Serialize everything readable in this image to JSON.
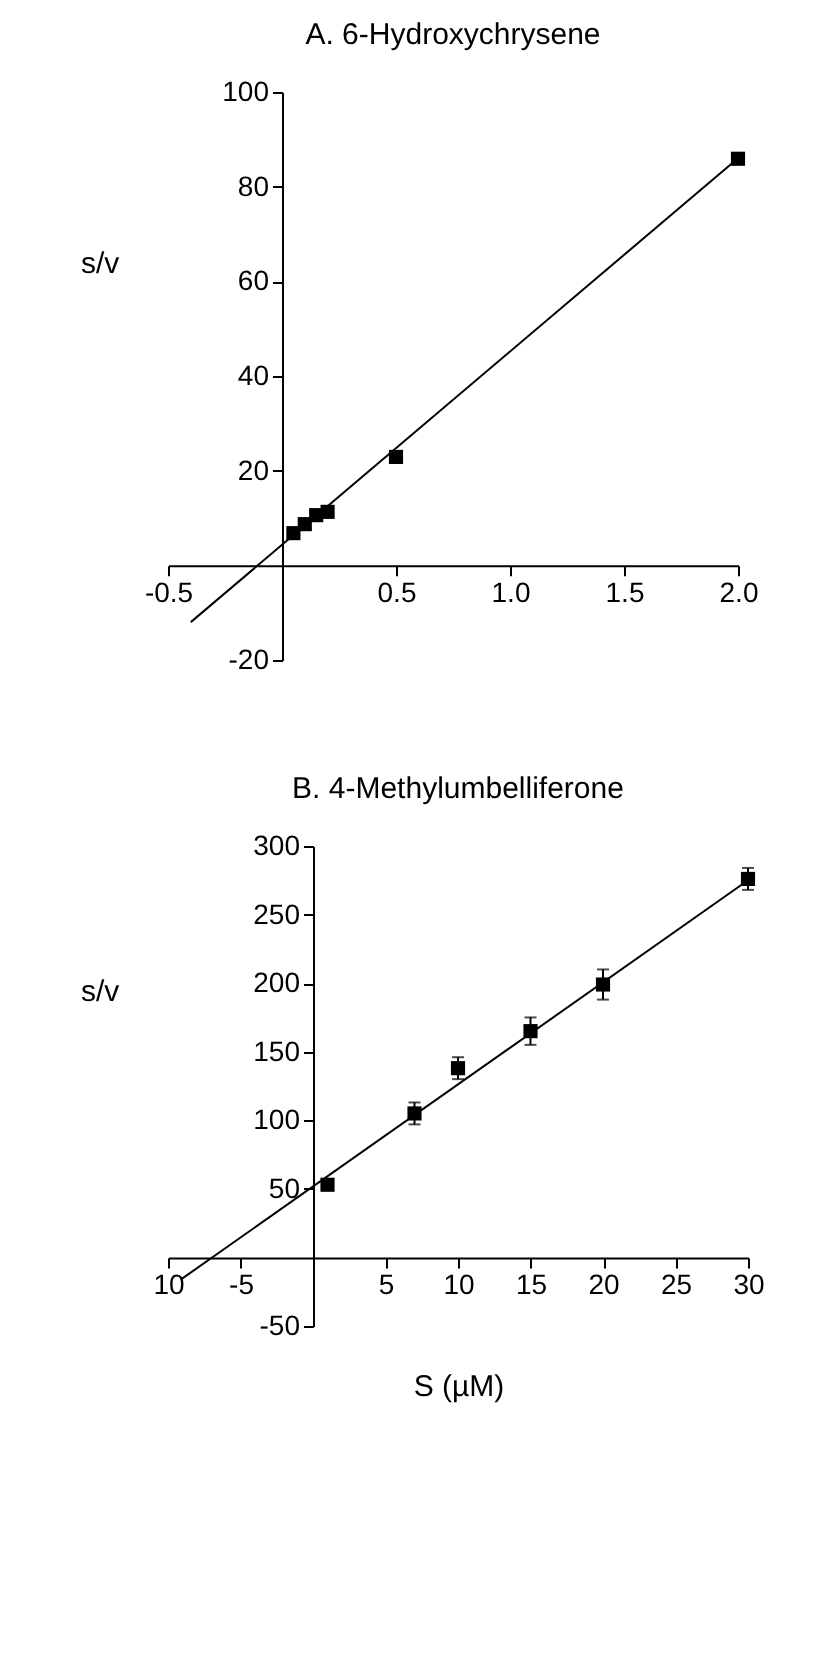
{
  "chart_data": [
    {
      "type": "scatter",
      "title": "A. 6-Hydroxychrysene",
      "ylabel": "s/v",
      "marker": "square",
      "xlim": [
        -0.5,
        2.0
      ],
      "ylim": [
        -20,
        100
      ],
      "xticks": [
        -0.5,
        0.5,
        {
          "value": 1,
          "label": "1.0"
        },
        1.5,
        {
          "value": 2,
          "label": "2.0"
        }
      ],
      "yticks": [
        -20,
        20,
        40,
        60,
        80,
        100
      ],
      "series": [
        {
          "color": "#000000",
          "x": [
            0.05,
            0.1,
            0.15,
            0.2,
            0.5,
            2.0
          ],
          "values": [
            6.8,
            8.7,
            10.6,
            11.3,
            22.9,
            85.9
          ]
        },
        {
          "type": "line",
          "marker": "none",
          "color": "#000000",
          "x": [
            -0.4,
            2.0
          ],
          "values": [
            -12,
            86
          ]
        }
      ]
    },
    {
      "type": "scatter",
      "title": "B. 4-Methylumbelliferone",
      "xlabel": "S (µM)",
      "ylabel": "s/v",
      "marker": "square",
      "xlim": [
        -10,
        30
      ],
      "ylim": [
        -50,
        300
      ],
      "xticks": [
        {
          "value": -10,
          "label": "10"
        },
        -5,
        5,
        10,
        15,
        20,
        25,
        30
      ],
      "yticks": [
        -50,
        50,
        100,
        150,
        200,
        250,
        300
      ],
      "series": [
        {
          "color": "#000000",
          "x": [
            1,
            7,
            10,
            15,
            20,
            30
          ],
          "values": [
            53,
            105,
            138,
            165,
            199,
            276
          ],
          "errors": [
            null,
            8,
            8,
            10,
            11,
            8
          ]
        },
        {
          "type": "line",
          "marker": "none",
          "color": "#000000",
          "x": [
            -9.1,
            30
          ],
          "values": [
            -16,
            275
          ]
        }
      ]
    }
  ]
}
